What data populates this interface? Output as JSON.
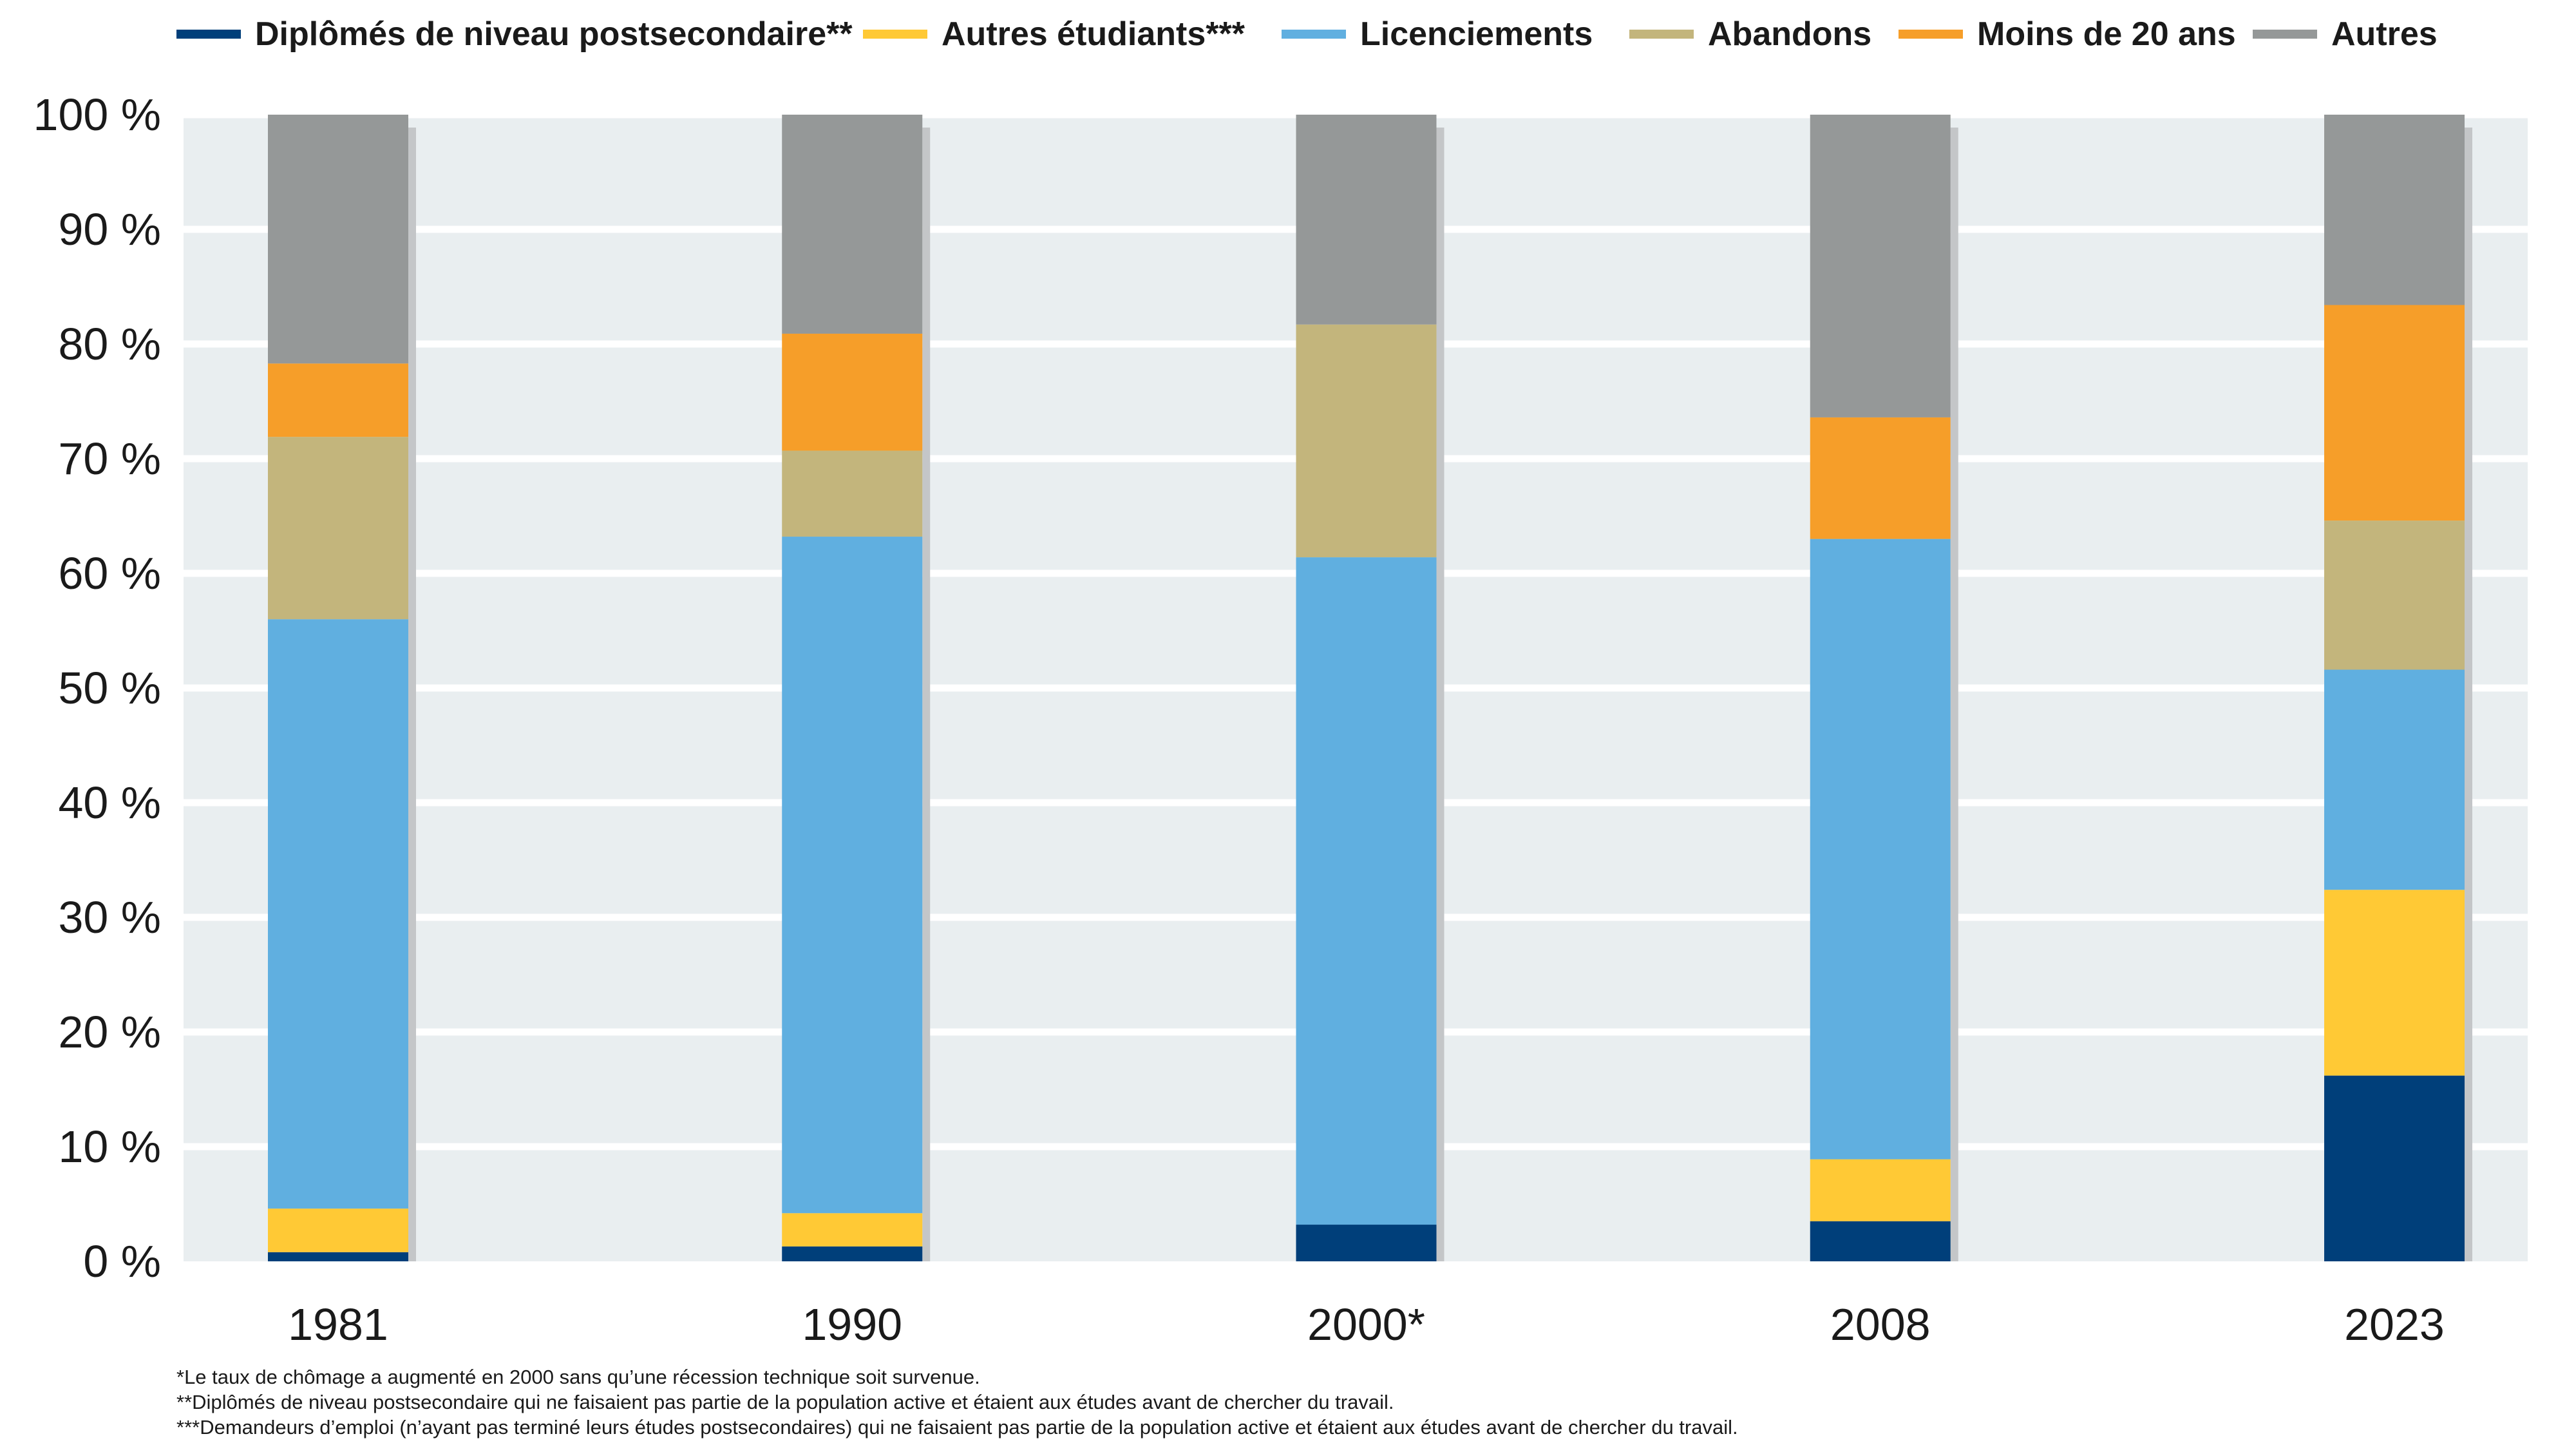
{
  "chart_data": {
    "type": "bar",
    "stacked": true,
    "categories": [
      "1981",
      "1990",
      "2000*",
      "2008",
      "2023"
    ],
    "series": [
      {
        "name": "Diplômés de niveau postsecondaire**",
        "color": "#003f7a",
        "values": [
          0.8,
          1.3,
          3.2,
          3.5,
          16.2
        ]
      },
      {
        "name": "Autres étudiants***",
        "color": "#ffc935",
        "values": [
          3.8,
          2.9,
          0,
          5.4,
          16.2
        ]
      },
      {
        "name": "Licenciements",
        "color": "#60afe0",
        "values": [
          51.4,
          59.0,
          58.2,
          54.1,
          19.2
        ]
      },
      {
        "name": "Abandons",
        "color": "#c3b57c",
        "values": [
          15.9,
          7.5,
          20.3,
          0,
          13.0
        ]
      },
      {
        "name": "Moins de 20 ans",
        "color": "#f69e29",
        "values": [
          6.4,
          10.2,
          0,
          10.6,
          18.8
        ]
      },
      {
        "name": "Autres",
        "color": "#959898",
        "values": [
          21.7,
          19.1,
          18.3,
          26.4,
          16.6
        ]
      }
    ],
    "yticks": [
      "0 %",
      "10 %",
      "20 %",
      "30 %",
      "40 %",
      "50 %",
      "60 %",
      "70 %",
      "80 %",
      "90 %",
      "100 %"
    ],
    "ylim": [
      0,
      100
    ],
    "grid": true,
    "legend_position": "top",
    "plot_background": "#e9eef0",
    "title": "",
    "xlabel": "",
    "ylabel": ""
  },
  "footnotes": [
    "*Le taux de chômage a augmenté en 2000 sans qu’une récession technique soit survenue.",
    "**Diplômés de niveau postsecondaire qui ne faisaient pas partie de la population active et étaient aux études avant de chercher du travail.",
    "***Demandeurs d’emploi (n’ayant pas terminé leurs études postsecondaires) qui ne faisaient pas partie de la population active et étaient aux études avant de chercher du travail."
  ]
}
